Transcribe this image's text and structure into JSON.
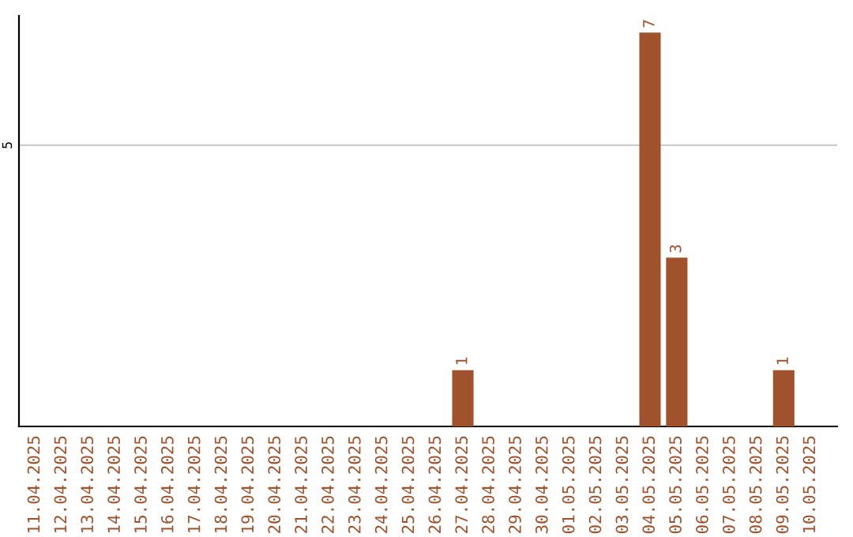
{
  "chart_data": {
    "type": "bar",
    "categories": [
      "11.04.2025",
      "12.04.2025",
      "13.04.2025",
      "14.04.2025",
      "15.04.2025",
      "16.04.2025",
      "17.04.2025",
      "18.04.2025",
      "19.04.2025",
      "20.04.2025",
      "21.04.2025",
      "22.04.2025",
      "23.04.2025",
      "24.04.2025",
      "25.04.2025",
      "26.04.2025",
      "27.04.2025",
      "28.04.2025",
      "29.04.2025",
      "30.04.2025",
      "01.05.2025",
      "02.05.2025",
      "03.05.2025",
      "04.05.2025",
      "05.05.2025",
      "06.05.2025",
      "07.05.2025",
      "08.05.2025",
      "09.05.2025",
      "10.05.2025"
    ],
    "values": [
      null,
      null,
      null,
      null,
      null,
      null,
      null,
      null,
      null,
      null,
      null,
      null,
      null,
      null,
      null,
      null,
      1,
      null,
      null,
      null,
      null,
      null,
      null,
      7,
      3,
      null,
      null,
      null,
      1,
      null
    ],
    "color": "#a0522d",
    "ylim": [
      0,
      7.3
    ],
    "yticks": [
      5
    ],
    "grid": "y",
    "data_labels": true
  }
}
